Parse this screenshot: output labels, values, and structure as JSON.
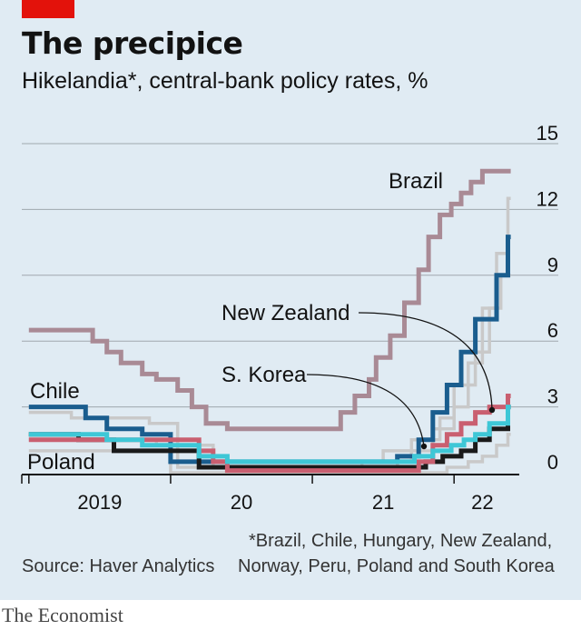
{
  "header": {
    "title": "The precipice",
    "subtitle": "Hikelandia*, central-bank policy rates, %"
  },
  "footer": {
    "note_line1": "*Brazil, Chile, Hungary, New Zealand,",
    "note_line2": "Norway, Peru, Poland and South Korea",
    "source": "Source: Haver Analytics",
    "brand": "The Economist"
  },
  "colors": {
    "background": "#e0ebf3",
    "accent": "#e3120b",
    "brazil": "#a98a95",
    "chile": "#1a5d8e",
    "new_zealand": "#1a1a1a",
    "south_korea": "#3ec7d6",
    "poland": "#c95f70",
    "other": "#c9c9c9"
  },
  "chart_data": {
    "type": "line",
    "step": true,
    "title": "The precipice",
    "subtitle": "Hikelandia*, central-bank policy rates, %",
    "ylim": [
      0,
      15
    ],
    "yticks": [
      "15",
      "12",
      "9",
      "6",
      "3",
      "0"
    ],
    "ytick_values": [
      15,
      12,
      9,
      6,
      3,
      0
    ],
    "xlim": [
      2018.95,
      2022.46
    ],
    "xtick_labels": [
      "2019",
      "20",
      "21",
      "22"
    ],
    "xtick_centers": [
      2019.5,
      2020.5,
      2021.5,
      2022.2
    ],
    "xtick_marks": [
      2019.0,
      2020.0,
      2021.0,
      2022.0
    ],
    "annotations": [
      "Brazil",
      "Chile",
      "Poland",
      "New Zealand",
      "S. Korea"
    ],
    "series": [
      {
        "name": "Other A",
        "labeled": false,
        "color": "#c9c9c9",
        "x": [
          2019.0,
          2019.9,
          2020.3,
          2021.0,
          2021.35,
          2021.5,
          2021.7,
          2021.9,
          2022.0,
          2022.15,
          2022.25,
          2022.33
        ],
        "values": [
          1.5,
          1.25,
          0.25,
          0.25,
          0.5,
          1.0,
          1.5,
          2.5,
          4.0,
          5.5,
          7.5,
          9.0
        ]
      },
      {
        "name": "Other B",
        "labeled": false,
        "color": "#c9c9c9",
        "x": [
          2019.0,
          2019.3,
          2019.85,
          2020.05,
          2020.3,
          2021.0,
          2021.6,
          2021.7,
          2021.85,
          2022.0,
          2022.1,
          2022.2,
          2022.3,
          2022.38
        ],
        "values": [
          2.75,
          2.5,
          2.25,
          0.25,
          0.25,
          0.25,
          0.5,
          1.0,
          2.0,
          3.0,
          5.0,
          7.5,
          10.0,
          12.5
        ]
      },
      {
        "name": "Other C",
        "labeled": false,
        "color": "#c9c9c9",
        "x": [
          2019.0,
          2019.8,
          2020.0,
          2021.5,
          2021.85,
          2021.95,
          2022.1,
          2022.2,
          2022.3,
          2022.38
        ],
        "values": [
          1.0,
          1.0,
          0.0,
          0.0,
          0.0,
          0.25,
          0.5,
          0.75,
          1.25,
          1.75
        ]
      },
      {
        "name": "Brazil",
        "labeled": true,
        "color": "#a98a95",
        "x": [
          2019.0,
          2019.45,
          2019.55,
          2019.65,
          2019.8,
          2019.9,
          2020.05,
          2020.15,
          2020.25,
          2020.4,
          2020.45,
          2021.2,
          2021.3,
          2021.4,
          2021.45,
          2021.55,
          2021.65,
          2021.75,
          2021.82,
          2021.9,
          2021.98,
          2022.05,
          2022.12,
          2022.2,
          2022.3,
          2022.38
        ],
        "values": [
          6.5,
          6.0,
          5.5,
          5.0,
          4.5,
          4.25,
          3.75,
          3.0,
          2.25,
          2.0,
          2.0,
          2.75,
          3.5,
          4.25,
          5.25,
          6.25,
          7.75,
          9.25,
          10.75,
          11.75,
          12.25,
          12.75,
          13.25,
          13.75,
          13.75,
          13.75
        ]
      },
      {
        "name": "Chile",
        "labeled": true,
        "color": "#1a5d8e",
        "x": [
          2019.0,
          2019.4,
          2019.55,
          2019.8,
          2020.0,
          2021.45,
          2021.6,
          2021.75,
          2021.85,
          2021.95,
          2022.05,
          2022.15,
          2022.3,
          2022.38
        ],
        "values": [
          3.0,
          2.5,
          2.0,
          1.75,
          0.5,
          0.5,
          0.75,
          1.5,
          2.75,
          4.0,
          5.5,
          7.0,
          9.0,
          10.75
        ]
      },
      {
        "name": "New Zealand",
        "labeled": true,
        "color": "#1a1a1a",
        "x": [
          2019.0,
          2019.35,
          2019.6,
          2019.85,
          2020.2,
          2021.65,
          2021.8,
          2021.92,
          2022.05,
          2022.15,
          2022.25,
          2022.38
        ],
        "values": [
          1.75,
          1.5,
          1.0,
          1.0,
          0.25,
          0.25,
          0.5,
          0.75,
          1.0,
          1.5,
          2.0,
          3.0
        ]
      },
      {
        "name": "Poland",
        "labeled": true,
        "color": "#c95f70",
        "x": [
          2019.0,
          2020.2,
          2020.3,
          2020.4,
          2021.5,
          2021.75,
          2021.85,
          2021.95,
          2022.05,
          2022.15,
          2022.25,
          2022.38
        ],
        "values": [
          1.5,
          1.0,
          0.5,
          0.1,
          0.1,
          0.5,
          1.25,
          1.75,
          2.25,
          2.75,
          3.0,
          3.5
        ]
      },
      {
        "name": "S. Korea",
        "labeled": true,
        "color": "#3ec7d6",
        "x": [
          2019.0,
          2019.55,
          2019.8,
          2020.2,
          2020.4,
          2021.65,
          2021.72,
          2021.85,
          2021.98,
          2022.07,
          2022.15,
          2022.25,
          2022.38
        ],
        "values": [
          1.75,
          1.5,
          1.25,
          0.75,
          0.5,
          0.5,
          0.75,
          1.0,
          1.25,
          1.5,
          1.75,
          2.25,
          3.0
        ]
      }
    ]
  }
}
